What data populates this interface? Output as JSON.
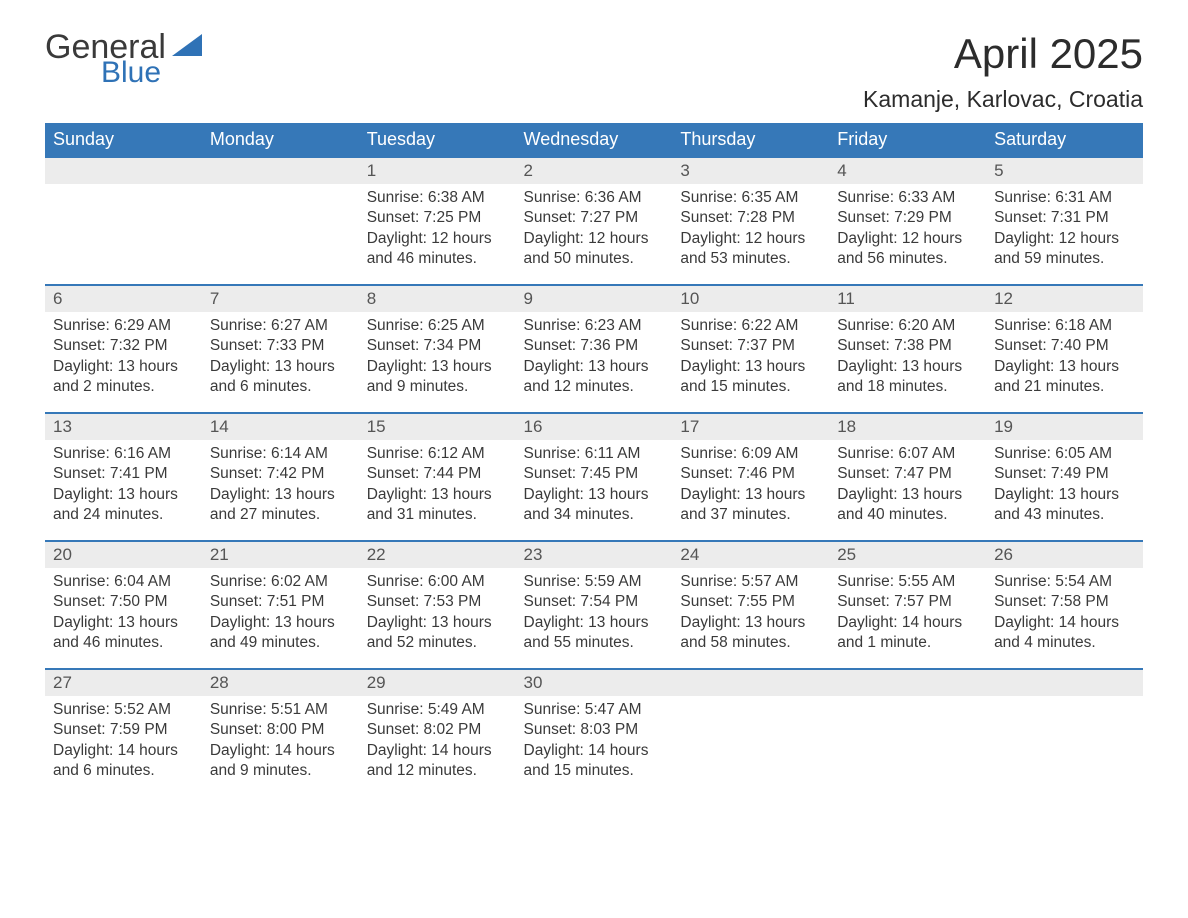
{
  "brand": {
    "word1": "General",
    "word2": "Blue",
    "color_dark": "#3a3a3a",
    "color_blue": "#2f72b6"
  },
  "header": {
    "month": "April 2025",
    "location": "Kamanje, Karlovac, Croatia"
  },
  "colors": {
    "header_bg": "#3678b8",
    "header_fg": "#ffffff",
    "daynum_bg": "#ececec",
    "rule": "#3678b8",
    "text": "#3a3a3a"
  },
  "fonts": {
    "title_size": 42,
    "location_size": 23,
    "th_size": 18,
    "daynum_size": 17,
    "body_size": 15.5
  },
  "days_of_week": [
    "Sunday",
    "Monday",
    "Tuesday",
    "Wednesday",
    "Thursday",
    "Friday",
    "Saturday"
  ],
  "weeks": [
    [
      null,
      null,
      {
        "n": "1",
        "sunrise": "6:38 AM",
        "sunset": "7:25 PM",
        "daylight": "12 hours and 46 minutes."
      },
      {
        "n": "2",
        "sunrise": "6:36 AM",
        "sunset": "7:27 PM",
        "daylight": "12 hours and 50 minutes."
      },
      {
        "n": "3",
        "sunrise": "6:35 AM",
        "sunset": "7:28 PM",
        "daylight": "12 hours and 53 minutes."
      },
      {
        "n": "4",
        "sunrise": "6:33 AM",
        "sunset": "7:29 PM",
        "daylight": "12 hours and 56 minutes."
      },
      {
        "n": "5",
        "sunrise": "6:31 AM",
        "sunset": "7:31 PM",
        "daylight": "12 hours and 59 minutes."
      }
    ],
    [
      {
        "n": "6",
        "sunrise": "6:29 AM",
        "sunset": "7:32 PM",
        "daylight": "13 hours and 2 minutes."
      },
      {
        "n": "7",
        "sunrise": "6:27 AM",
        "sunset": "7:33 PM",
        "daylight": "13 hours and 6 minutes."
      },
      {
        "n": "8",
        "sunrise": "6:25 AM",
        "sunset": "7:34 PM",
        "daylight": "13 hours and 9 minutes."
      },
      {
        "n": "9",
        "sunrise": "6:23 AM",
        "sunset": "7:36 PM",
        "daylight": "13 hours and 12 minutes."
      },
      {
        "n": "10",
        "sunrise": "6:22 AM",
        "sunset": "7:37 PM",
        "daylight": "13 hours and 15 minutes."
      },
      {
        "n": "11",
        "sunrise": "6:20 AM",
        "sunset": "7:38 PM",
        "daylight": "13 hours and 18 minutes."
      },
      {
        "n": "12",
        "sunrise": "6:18 AM",
        "sunset": "7:40 PM",
        "daylight": "13 hours and 21 minutes."
      }
    ],
    [
      {
        "n": "13",
        "sunrise": "6:16 AM",
        "sunset": "7:41 PM",
        "daylight": "13 hours and 24 minutes."
      },
      {
        "n": "14",
        "sunrise": "6:14 AM",
        "sunset": "7:42 PM",
        "daylight": "13 hours and 27 minutes."
      },
      {
        "n": "15",
        "sunrise": "6:12 AM",
        "sunset": "7:44 PM",
        "daylight": "13 hours and 31 minutes."
      },
      {
        "n": "16",
        "sunrise": "6:11 AM",
        "sunset": "7:45 PM",
        "daylight": "13 hours and 34 minutes."
      },
      {
        "n": "17",
        "sunrise": "6:09 AM",
        "sunset": "7:46 PM",
        "daylight": "13 hours and 37 minutes."
      },
      {
        "n": "18",
        "sunrise": "6:07 AM",
        "sunset": "7:47 PM",
        "daylight": "13 hours and 40 minutes."
      },
      {
        "n": "19",
        "sunrise": "6:05 AM",
        "sunset": "7:49 PM",
        "daylight": "13 hours and 43 minutes."
      }
    ],
    [
      {
        "n": "20",
        "sunrise": "6:04 AM",
        "sunset": "7:50 PM",
        "daylight": "13 hours and 46 minutes."
      },
      {
        "n": "21",
        "sunrise": "6:02 AM",
        "sunset": "7:51 PM",
        "daylight": "13 hours and 49 minutes."
      },
      {
        "n": "22",
        "sunrise": "6:00 AM",
        "sunset": "7:53 PM",
        "daylight": "13 hours and 52 minutes."
      },
      {
        "n": "23",
        "sunrise": "5:59 AM",
        "sunset": "7:54 PM",
        "daylight": "13 hours and 55 minutes."
      },
      {
        "n": "24",
        "sunrise": "5:57 AM",
        "sunset": "7:55 PM",
        "daylight": "13 hours and 58 minutes."
      },
      {
        "n": "25",
        "sunrise": "5:55 AM",
        "sunset": "7:57 PM",
        "daylight": "14 hours and 1 minute."
      },
      {
        "n": "26",
        "sunrise": "5:54 AM",
        "sunset": "7:58 PM",
        "daylight": "14 hours and 4 minutes."
      }
    ],
    [
      {
        "n": "27",
        "sunrise": "5:52 AM",
        "sunset": "7:59 PM",
        "daylight": "14 hours and 6 minutes."
      },
      {
        "n": "28",
        "sunrise": "5:51 AM",
        "sunset": "8:00 PM",
        "daylight": "14 hours and 9 minutes."
      },
      {
        "n": "29",
        "sunrise": "5:49 AM",
        "sunset": "8:02 PM",
        "daylight": "14 hours and 12 minutes."
      },
      {
        "n": "30",
        "sunrise": "5:47 AM",
        "sunset": "8:03 PM",
        "daylight": "14 hours and 15 minutes."
      },
      null,
      null,
      null
    ]
  ],
  "labels": {
    "sunrise": "Sunrise: ",
    "sunset": "Sunset: ",
    "daylight": "Daylight: "
  }
}
